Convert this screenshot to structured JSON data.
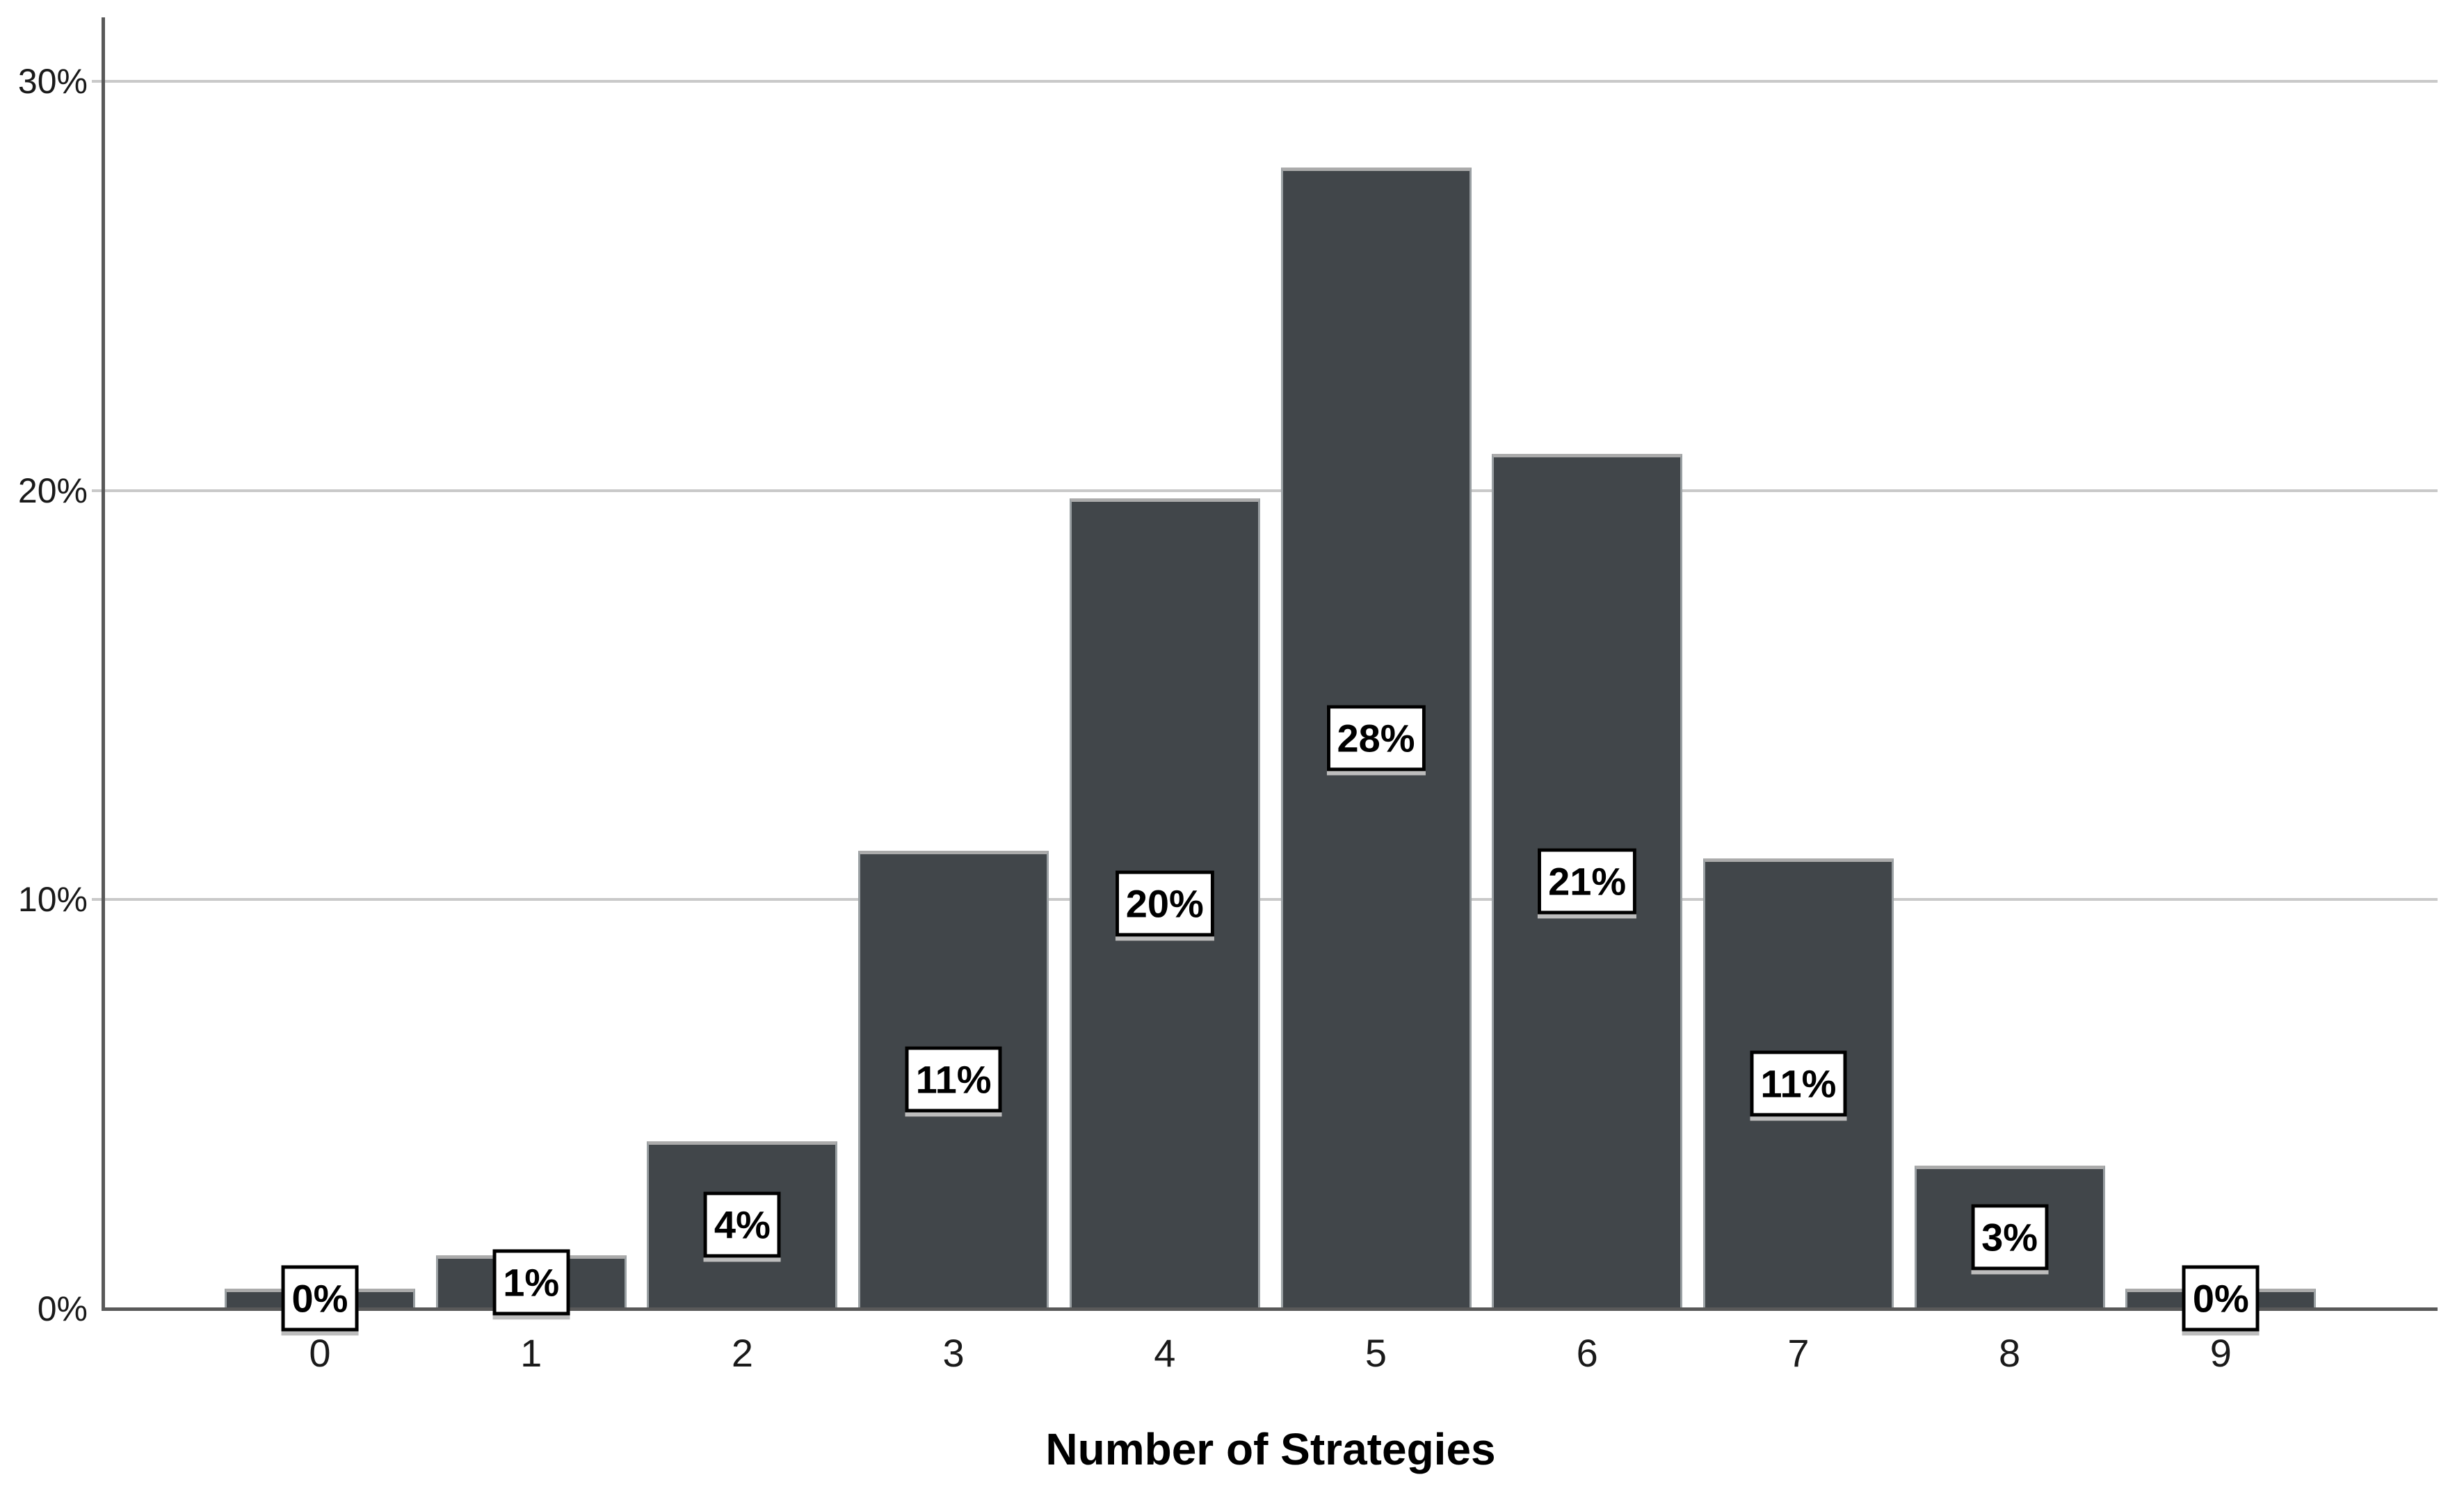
{
  "chart_data": {
    "type": "bar",
    "title": "",
    "xlabel": "Number of Strategies",
    "ylabel": "",
    "categories": [
      "0",
      "1",
      "2",
      "3",
      "4",
      "5",
      "6",
      "7",
      "8",
      "9"
    ],
    "values": [
      0,
      1,
      4,
      11,
      20,
      28,
      21,
      11,
      3,
      0
    ],
    "bar_labels": [
      "0%",
      "1%",
      "4%",
      "11%",
      "20%",
      "28%",
      "21%",
      "11%",
      "3%",
      "0%"
    ],
    "bar_heights_pct_estimated": [
      0.5,
      1.3,
      4.1,
      11.2,
      19.8,
      27.9,
      20.9,
      11.0,
      3.5,
      0.5
    ],
    "y_axis": {
      "ticks": [
        {
          "label": "0%",
          "value": 0
        },
        {
          "label": "10%",
          "value": 10
        },
        {
          "label": "20%",
          "value": 20
        },
        {
          "label": "30%",
          "value": 30
        }
      ],
      "range": [
        0,
        31.5
      ],
      "gridline_values": [
        10,
        20,
        30
      ]
    },
    "grid": "horizontal",
    "legend_position": "none",
    "colors": {
      "background": "#FFFFFF",
      "bar_fill": "#41464A",
      "bar_top_edge": "#ABABAB",
      "bar_side_edge": "#9AA0A3",
      "grid_line": "#C9C9C9",
      "axis_line": "#595959",
      "tick_text": "#1A1A1A",
      "label_box_background": "#FFFFFF",
      "label_box_border": "#000000",
      "label_box_shadow": "#BDBDBD",
      "label_text": "#000000"
    }
  }
}
